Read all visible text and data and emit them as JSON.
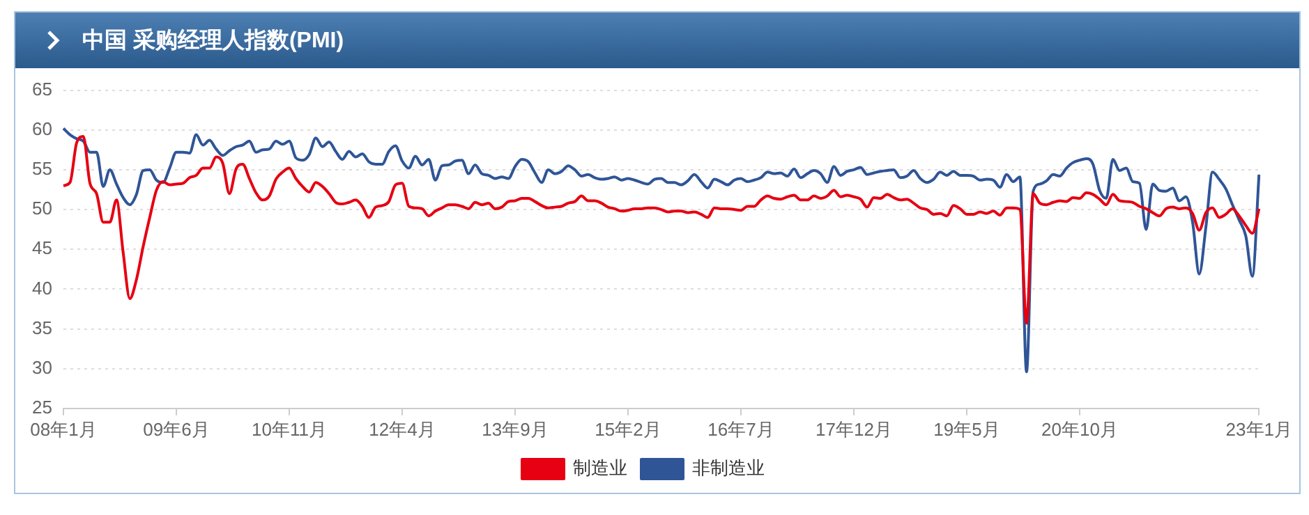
{
  "chart_data": {
    "type": "line",
    "title": "中国 采购经理人指数(PMI)",
    "categories": [
      "08年1月",
      null,
      null,
      null,
      null,
      null,
      null,
      null,
      null,
      null,
      null,
      null,
      null,
      null,
      null,
      null,
      null,
      "09年6月",
      null,
      null,
      null,
      null,
      null,
      null,
      null,
      null,
      null,
      null,
      null,
      null,
      null,
      null,
      null,
      null,
      "10年11月",
      null,
      null,
      null,
      null,
      null,
      null,
      null,
      null,
      null,
      null,
      null,
      null,
      null,
      null,
      null,
      null,
      "12年4月",
      null,
      null,
      null,
      null,
      null,
      null,
      null,
      null,
      null,
      null,
      null,
      null,
      null,
      null,
      null,
      null,
      "13年9月",
      null,
      null,
      null,
      null,
      null,
      null,
      null,
      null,
      null,
      null,
      null,
      null,
      null,
      null,
      null,
      null,
      "15年2月",
      null,
      null,
      null,
      null,
      null,
      null,
      null,
      null,
      null,
      null,
      null,
      null,
      null,
      null,
      null,
      null,
      "16年7月",
      null,
      null,
      null,
      null,
      null,
      null,
      null,
      null,
      null,
      null,
      null,
      null,
      null,
      null,
      null,
      null,
      "17年12月",
      null,
      null,
      null,
      null,
      null,
      null,
      null,
      null,
      null,
      null,
      null,
      null,
      null,
      null,
      null,
      null,
      "19年5月",
      null,
      null,
      null,
      null,
      null,
      null,
      null,
      null,
      null,
      null,
      null,
      null,
      null,
      null,
      null,
      null,
      "20年10月",
      null,
      null,
      null,
      null,
      null,
      null,
      null,
      null,
      null,
      null,
      null,
      null,
      null,
      null,
      null,
      null,
      null,
      null,
      null,
      null,
      null,
      null,
      null,
      null,
      null,
      null,
      "23年1月"
    ],
    "series": [
      {
        "name": "制造业",
        "color": "#e60012",
        "values": [
          53.0,
          53.4,
          58.4,
          59.2,
          53.3,
          52.0,
          48.4,
          48.4,
          51.2,
          44.6,
          38.8,
          41.2,
          45.3,
          49.0,
          52.4,
          53.5,
          53.1,
          53.2,
          53.3,
          54.0,
          54.3,
          55.2,
          55.2,
          56.6,
          55.8,
          52.0,
          55.1,
          55.7,
          53.9,
          52.1,
          51.2,
          51.7,
          53.8,
          54.7,
          55.2,
          53.9,
          52.9,
          52.2,
          53.4,
          52.9,
          52.0,
          50.9,
          50.7,
          50.9,
          51.2,
          50.4,
          49.0,
          50.3,
          50.5,
          51.0,
          53.1,
          53.3,
          50.4,
          50.2,
          50.1,
          49.2,
          49.8,
          50.2,
          50.6,
          50.6,
          50.4,
          50.1,
          50.9,
          50.6,
          50.8,
          50.1,
          50.3,
          51.0,
          51.1,
          51.4,
          51.4,
          51.0,
          50.5,
          50.2,
          50.3,
          50.4,
          50.8,
          51.0,
          51.7,
          51.1,
          51.1,
          50.8,
          50.3,
          50.1,
          49.8,
          49.9,
          50.1,
          50.1,
          50.2,
          50.2,
          50.0,
          49.7,
          49.8,
          49.8,
          49.6,
          49.7,
          49.4,
          49.0,
          50.2,
          50.1,
          50.1,
          50.0,
          49.9,
          50.4,
          50.4,
          51.2,
          51.7,
          51.4,
          51.3,
          51.6,
          51.8,
          51.2,
          51.2,
          51.7,
          51.4,
          51.7,
          52.4,
          51.6,
          51.8,
          51.6,
          51.3,
          50.3,
          51.5,
          51.4,
          51.9,
          51.5,
          51.2,
          51.3,
          50.8,
          50.2,
          50.0,
          49.4,
          49.5,
          49.2,
          50.5,
          50.1,
          49.4,
          49.4,
          49.7,
          49.5,
          49.8,
          49.3,
          50.2,
          50.2,
          50.0,
          35.7,
          52.0,
          50.8,
          50.6,
          50.9,
          51.1,
          51.0,
          51.5,
          51.4,
          52.1,
          51.9,
          51.3,
          50.6,
          51.9,
          51.1,
          51.0,
          50.9,
          50.4,
          50.1,
          49.6,
          49.2,
          50.1,
          50.3,
          50.1,
          50.2,
          49.5,
          47.4,
          49.6,
          50.2,
          49.0,
          49.4,
          50.1,
          49.2,
          48.0,
          47.0,
          50.1
        ]
      },
      {
        "name": "非制造业",
        "color": "#2f5597",
        "values": [
          60.2,
          59.4,
          58.9,
          58.6,
          57.2,
          57.2,
          52.9,
          55.0,
          53.2,
          51.5,
          50.6,
          51.9,
          54.9,
          55.0,
          53.7,
          53.4,
          55.2,
          57.2,
          57.2,
          57.1,
          59.4,
          58.1,
          58.7,
          57.6,
          56.8,
          57.4,
          57.9,
          58.1,
          58.6,
          57.2,
          57.5,
          57.6,
          58.6,
          58.2,
          58.6,
          56.5,
          56.2,
          56.9,
          59.0,
          57.9,
          58.5,
          57.3,
          56.3,
          57.3,
          56.6,
          57.0,
          56.0,
          55.7,
          55.7,
          57.3,
          58.0,
          56.1,
          55.2,
          56.7,
          55.6,
          56.3,
          53.7,
          55.5,
          55.6,
          56.1,
          56.2,
          54.5,
          55.6,
          54.5,
          54.3,
          53.9,
          54.1,
          53.9,
          55.4,
          56.3,
          56.0,
          54.6,
          53.4,
          55.0,
          54.5,
          54.8,
          55.5,
          55.0,
          54.2,
          54.4,
          54.0,
          53.8,
          53.9,
          54.1,
          53.7,
          53.9,
          53.7,
          53.4,
          53.2,
          53.8,
          53.9,
          53.4,
          53.4,
          53.1,
          53.6,
          54.4,
          53.5,
          52.7,
          53.8,
          53.5,
          53.1,
          53.7,
          53.9,
          53.5,
          53.7,
          54.0,
          54.7,
          54.5,
          54.6,
          54.2,
          55.1,
          54.0,
          54.5,
          54.9,
          54.5,
          53.4,
          55.4,
          54.3,
          54.8,
          55.0,
          55.3,
          54.4,
          54.6,
          54.8,
          54.9,
          55.0,
          54.0,
          54.2,
          54.9,
          53.9,
          53.4,
          53.8,
          54.7,
          54.3,
          54.8,
          54.3,
          54.3,
          54.2,
          53.7,
          53.8,
          53.7,
          52.8,
          54.4,
          53.5,
          54.1,
          29.6,
          52.3,
          53.2,
          53.6,
          54.4,
          54.2,
          55.2,
          55.9,
          56.2,
          56.4,
          55.7,
          52.4,
          51.4,
          56.3,
          54.9,
          55.2,
          53.5,
          53.3,
          47.5,
          53.2,
          52.4,
          52.3,
          52.7,
          51.1,
          51.6,
          48.4,
          41.9,
          47.8,
          54.7,
          53.8,
          52.6,
          50.6,
          48.7,
          46.7,
          41.6,
          54.4
        ]
      }
    ],
    "ylim": [
      25,
      65
    ],
    "yticks": [
      25,
      30,
      35,
      40,
      45,
      50,
      55,
      60,
      65
    ],
    "grid": "y",
    "legend": "bottom",
    "marker": "none",
    "line_style": "solid"
  }
}
